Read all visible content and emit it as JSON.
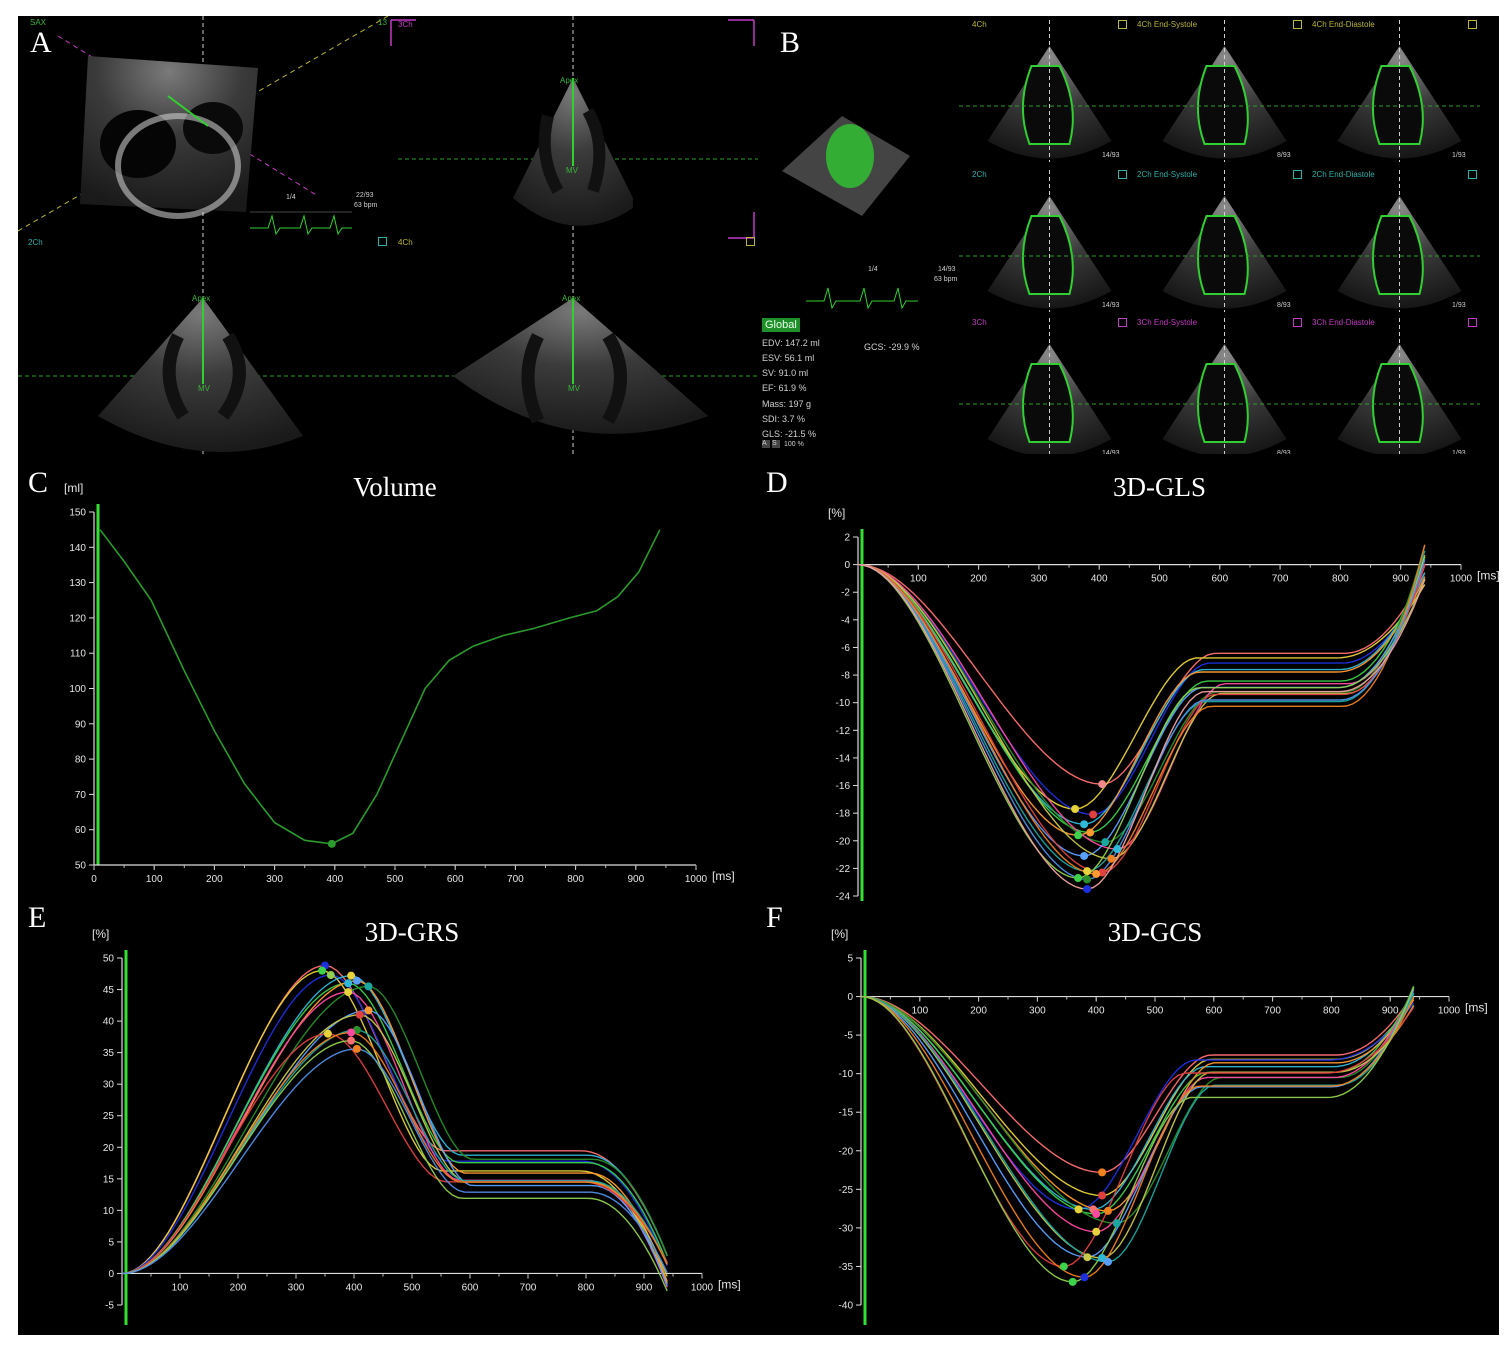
{
  "panels_top": {
    "A": {
      "letter": "A",
      "labels": {
        "sax": "SAX",
        "ch3": "3Ch",
        "ch2": "2Ch",
        "ch4": "4Ch",
        "num": "13"
      },
      "apex1": "Apex",
      "apex2": "Apex",
      "apex3": "Apex",
      "mv1": "MV",
      "mv2": "MV",
      "mv3": "MV",
      "frame": "1/4",
      "counter": "22/93",
      "bpm": "63 bpm"
    },
    "B": {
      "letter": "B",
      "views": [
        {
          "label": "4Ch",
          "cls": "y"
        },
        {
          "label": "4Ch End-Systole",
          "cls": "y"
        },
        {
          "label": "4Ch End-Diastole",
          "cls": "y"
        },
        {
          "label": "2Ch",
          "cls": ""
        },
        {
          "label": "2Ch End-Systole",
          "cls": ""
        },
        {
          "label": "2Ch End-Diastole",
          "cls": ""
        },
        {
          "label": "3Ch",
          "cls": "m"
        },
        {
          "label": "3Ch End-Systole",
          "cls": "m"
        },
        {
          "label": "3Ch End-Diastole",
          "cls": "m"
        }
      ],
      "frame_labels": [
        "14/93",
        "8/93",
        "1/93"
      ],
      "frame": "1/4",
      "counter": "14/93",
      "bpm": "63 bpm",
      "global": {
        "header": "Global",
        "rows": [
          "EDV: 147.2 ml",
          "ESV: 56.1 ml",
          "SV: 91.0 ml",
          "EF: 61.9 %",
          "Mass: 197 g",
          "SDI: 3.7 %",
          "GLS: -21.5 %"
        ],
        "gcs": "GCS: -29.9 %",
        "zoom": "100 %",
        "zoom_buttons": [
          "A",
          "S"
        ]
      }
    }
  },
  "chart_data": [
    {
      "id": "C",
      "letter": "C",
      "type": "line",
      "title": "Volume",
      "ylabel_unit": "[ml]",
      "xlabel_unit": "[ms]",
      "xlim": [
        0,
        1000
      ],
      "ylim": [
        50,
        150
      ],
      "xticks": [
        0,
        100,
        200,
        300,
        400,
        500,
        600,
        700,
        800,
        900,
        1000
      ],
      "yticks": [
        50,
        60,
        70,
        80,
        90,
        100,
        110,
        120,
        130,
        140,
        150
      ],
      "series": [
        {
          "color": "#2c9a2c",
          "points": [
            [
              10,
              145
            ],
            [
              50,
              136
            ],
            [
              95,
              125
            ],
            [
              150,
              105
            ],
            [
              200,
              88
            ],
            [
              250,
              73
            ],
            [
              300,
              62
            ],
            [
              350,
              57
            ],
            [
              395,
              56
            ],
            [
              430,
              59
            ],
            [
              470,
              70
            ],
            [
              510,
              85
            ],
            [
              550,
              100
            ],
            [
              590,
              108
            ],
            [
              630,
              112
            ],
            [
              680,
              115
            ],
            [
              730,
              117
            ],
            [
              790,
              120
            ],
            [
              835,
              122
            ],
            [
              870,
              126
            ],
            [
              905,
              133
            ],
            [
              940,
              145
            ]
          ]
        }
      ],
      "markers": [
        {
          "x": 395,
          "y": 56,
          "color": "#2c9a2c"
        }
      ]
    },
    {
      "id": "D",
      "letter": "D",
      "type": "line",
      "title": "3D-GLS",
      "ylabel_unit": "[%]",
      "xlabel_unit": "[ms]",
      "xlim": [
        0,
        1000
      ],
      "ylim": [
        -24,
        2
      ],
      "xticks": [
        100,
        200,
        300,
        400,
        500,
        600,
        700,
        800,
        900,
        1000
      ],
      "yticks": [
        2,
        0,
        -2,
        -4,
        -6,
        -8,
        -10,
        -12,
        -14,
        -16,
        -18,
        -20,
        -22,
        -24
      ],
      "kind": "gls",
      "curve_colors": [
        "#ff7070",
        "#e8d23a",
        "#1e2fe0",
        "#2fb8d8",
        "#3cd24a",
        "#ff9a30",
        "#2a8f2a",
        "#ff4aa0",
        "#5aa0ff",
        "#c8c84a",
        "#18a8a0",
        "#e04040",
        "#f08020",
        "#8fd050",
        "#4f8fe8",
        "#f0a0a0"
      ],
      "series_peaks": [
        {
          "t": 405,
          "v": -15.9,
          "color": "#f08a8a"
        },
        {
          "t": 360,
          "v": -17.7,
          "color": "#e8d23a"
        },
        {
          "t": 390,
          "v": -18.1,
          "color": "#e04040"
        },
        {
          "t": 375,
          "v": -18.8,
          "color": "#2fb8d8"
        },
        {
          "t": 385,
          "v": -19.4,
          "color": "#ff9a30"
        },
        {
          "t": 365,
          "v": -19.6,
          "color": "#3cd24a"
        },
        {
          "t": 410,
          "v": -20.1,
          "color": "#18a8a0"
        },
        {
          "t": 430,
          "v": -20.6,
          "color": "#2fb8d8"
        },
        {
          "t": 375,
          "v": -21.1,
          "color": "#5aa0ff"
        },
        {
          "t": 420,
          "v": -21.3,
          "color": "#f08020"
        },
        {
          "t": 380,
          "v": -22.2,
          "color": "#e8d23a"
        },
        {
          "t": 405,
          "v": -22.3,
          "color": "#e04040"
        },
        {
          "t": 395,
          "v": -22.4,
          "color": "#ff9a30"
        },
        {
          "t": 365,
          "v": -22.7,
          "color": "#3cd24a"
        },
        {
          "t": 380,
          "v": -22.8,
          "color": "#2a8f2a"
        },
        {
          "t": 380,
          "v": -23.5,
          "color": "#1e2fe0"
        }
      ]
    },
    {
      "id": "E",
      "letter": "E",
      "type": "line",
      "title": "3D-GRS",
      "ylabel_unit": "[%]",
      "xlabel_unit": "[ms]",
      "xlim": [
        0,
        1000
      ],
      "ylim": [
        -5,
        50
      ],
      "xticks": [
        100,
        200,
        300,
        400,
        500,
        600,
        700,
        800,
        900,
        1000
      ],
      "yticks": [
        50,
        45,
        40,
        35,
        30,
        25,
        20,
        15,
        10,
        5,
        0,
        -5
      ],
      "kind": "grs",
      "curve_colors": [
        "#ff7070",
        "#e8d23a",
        "#1e2fe0",
        "#2fb8d8",
        "#3cd24a",
        "#ff9a30",
        "#2a8f2a",
        "#ff4aa0",
        "#5aa0ff",
        "#c8c84a",
        "#18a8a0",
        "#e04040",
        "#f08020",
        "#8fd050",
        "#4f8fe8",
        "#f0a0a0"
      ],
      "series_peaks": [
        {
          "t": 350,
          "v": 48.8,
          "color": "#1e2fe0"
        },
        {
          "t": 345,
          "v": 48.0,
          "color": "#3cd24a"
        },
        {
          "t": 360,
          "v": 47.3,
          "color": "#8fd050"
        },
        {
          "t": 395,
          "v": 47.2,
          "color": "#e8d23a"
        },
        {
          "t": 390,
          "v": 46.0,
          "color": "#2fb8d8"
        },
        {
          "t": 405,
          "v": 46.4,
          "color": "#5aa0ff"
        },
        {
          "t": 425,
          "v": 45.5,
          "color": "#18a8a0"
        },
        {
          "t": 390,
          "v": 44.6,
          "color": "#e8d23a"
        },
        {
          "t": 425,
          "v": 41.7,
          "color": "#ff9a30"
        },
        {
          "t": 410,
          "v": 41.0,
          "color": "#e04040"
        },
        {
          "t": 405,
          "v": 38.6,
          "color": "#2a8f2a"
        },
        {
          "t": 355,
          "v": 38.0,
          "color": "#e8d23a"
        },
        {
          "t": 395,
          "v": 38.2,
          "color": "#ff4aa0"
        },
        {
          "t": 395,
          "v": 36.9,
          "color": "#ff7070"
        },
        {
          "t": 405,
          "v": 35.6,
          "color": "#f08020"
        }
      ]
    },
    {
      "id": "F",
      "letter": "F",
      "type": "line",
      "title": "3D-GCS",
      "ylabel_unit": "[%]",
      "xlabel_unit": "[ms]",
      "xlim": [
        0,
        1000
      ],
      "ylim": [
        -40,
        5
      ],
      "xticks": [
        100,
        200,
        300,
        400,
        500,
        600,
        700,
        800,
        900,
        1000
      ],
      "yticks": [
        5,
        0,
        -5,
        -10,
        -15,
        -20,
        -25,
        -30,
        -35,
        -40
      ],
      "kind": "gcs",
      "curve_colors": [
        "#ff7070",
        "#e8d23a",
        "#1e2fe0",
        "#2fb8d8",
        "#3cd24a",
        "#ff9a30",
        "#2a8f2a",
        "#ff4aa0",
        "#5aa0ff",
        "#c8c84a",
        "#18a8a0",
        "#e04040",
        "#f08020",
        "#8fd050",
        "#4f8fe8",
        "#f0a0a0"
      ],
      "series_peaks": [
        {
          "t": 410,
          "v": -22.8,
          "color": "#f08020"
        },
        {
          "t": 410,
          "v": -25.8,
          "color": "#e04040"
        },
        {
          "t": 370,
          "v": -27.6,
          "color": "#e8d23a"
        },
        {
          "t": 395,
          "v": -27.6,
          "color": "#ff7070"
        },
        {
          "t": 400,
          "v": -28.2,
          "color": "#ff4aa0"
        },
        {
          "t": 420,
          "v": -27.8,
          "color": "#f08020"
        },
        {
          "t": 435,
          "v": -29.4,
          "color": "#18a8a0"
        },
        {
          "t": 400,
          "v": -30.5,
          "color": "#e8d23a"
        },
        {
          "t": 385,
          "v": -33.8,
          "color": "#c8c84a"
        },
        {
          "t": 410,
          "v": -33.9,
          "color": "#2fb8d8"
        },
        {
          "t": 420,
          "v": -34.4,
          "color": "#5aa0ff"
        },
        {
          "t": 345,
          "v": -35.0,
          "color": "#3cd24a"
        },
        {
          "t": 380,
          "v": -36.4,
          "color": "#1e2fe0"
        },
        {
          "t": 360,
          "v": -37.0,
          "color": "#3cd24a"
        }
      ]
    }
  ]
}
